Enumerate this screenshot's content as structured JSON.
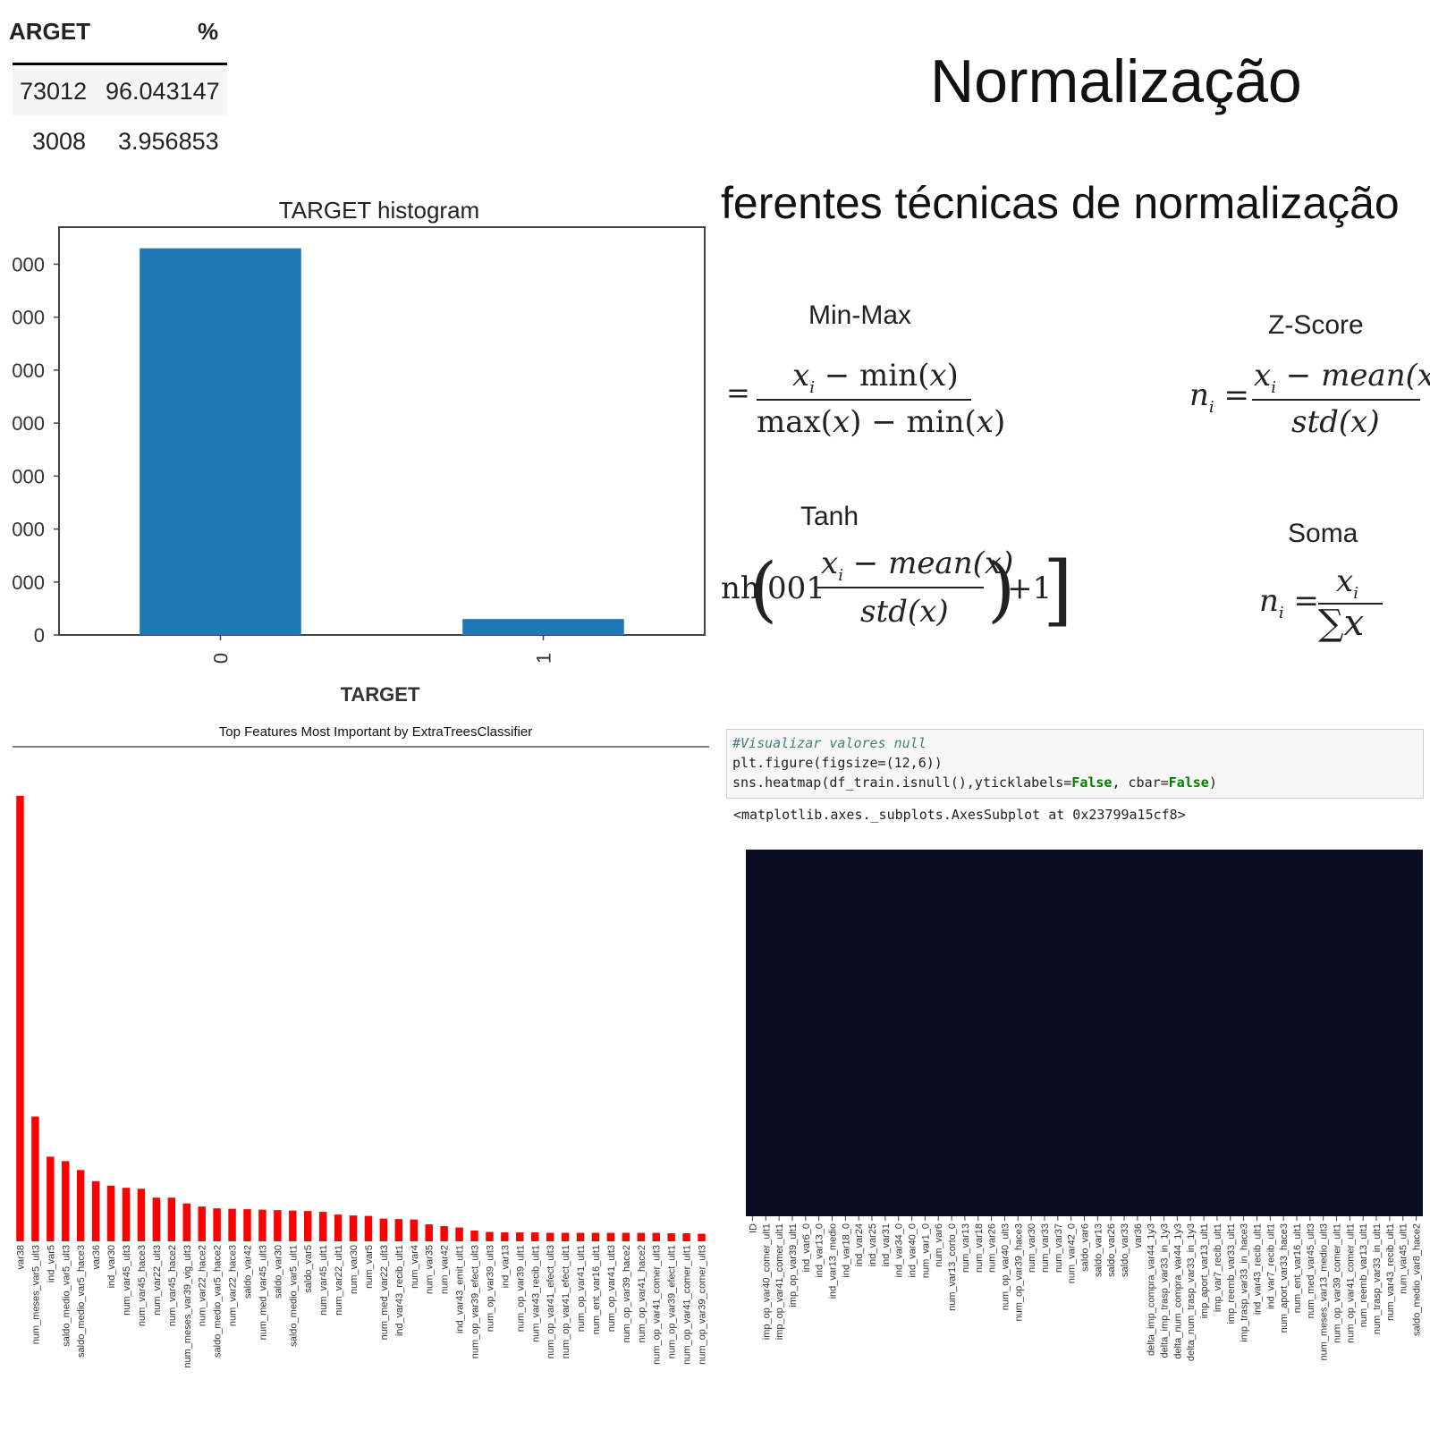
{
  "table": {
    "col1_header": "ARGET",
    "col2_header": "%",
    "rows": [
      {
        "count": "73012",
        "pct": "96.043147"
      },
      {
        "count": "3008",
        "pct": "3.956853"
      }
    ]
  },
  "slide": {
    "title": "Normalização",
    "subtitle": "ferentes técnicas de normalização",
    "formulas": {
      "minmax_label": "Min-Max",
      "zscore_label": "Z-Score",
      "tanh_label": "Tanh",
      "soma_label": "Soma"
    }
  },
  "code_cell": {
    "comment": "#Visualizar valores null",
    "line1": "plt.figure(figsize=(12,6))",
    "line2_prefix": "sns.heatmap(df_train.isnull(),yticklabels=",
    "line2_false1": "False",
    "line2_mid": ", cbar=",
    "line2_false2": "False",
    "line2_suffix": ")",
    "output": "<matplotlib.axes._subplots.AxesSubplot at 0x23799a15cf8>"
  },
  "chart_data": [
    {
      "type": "bar",
      "title": "TARGET histogram",
      "xlabel": "TARGET",
      "ylabel": "",
      "categories": [
        "0",
        "1"
      ],
      "values": [
        73012,
        3008
      ],
      "ylim": [
        0,
        77000
      ],
      "yticks": [
        0,
        10000,
        20000,
        30000,
        40000,
        50000,
        60000,
        70000
      ],
      "ytick_labels": [
        "0",
        "000",
        "000",
        "000",
        "000",
        "000",
        "000",
        "000"
      ],
      "color": "#1f77b4"
    },
    {
      "type": "bar",
      "title": "Top Features Most Important by ExtraTreesClassifier",
      "xlabel": "",
      "ylabel": "",
      "color": "#ff0000",
      "categories": [
        "var38",
        "num_meses_var5_ult3",
        "ind_var5",
        "saldo_medio_var5_ult3",
        "saldo_medio_var5_hace3",
        "var36",
        "ind_var30",
        "num_var45_ult3",
        "num_var45_hace3",
        "num_var22_ult3",
        "num_var45_hace2",
        "num_meses_var39_vig_ult3",
        "num_var22_hace2",
        "saldo_medio_var5_hace2",
        "num_var22_hace3",
        "saldo_var42",
        "num_med_var45_ult3",
        "saldo_var30",
        "saldo_medio_var5_ult1",
        "saldo_var5",
        "num_var45_ult1",
        "num_var22_ult1",
        "num_var30",
        "num_var5",
        "num_med_var22_ult3",
        "ind_var43_recib_ult1",
        "num_var4",
        "num_var35",
        "num_var42",
        "ind_var43_emit_ult1",
        "num_op_var39_efect_ult3",
        "num_op_var39_ult3",
        "ind_var13",
        "num_op_var39_ult1",
        "num_var43_recib_ult1",
        "num_op_var41_efect_ult3",
        "num_op_var41_efect_ult1",
        "num_op_var41_ult1",
        "num_ent_var16_ult1",
        "num_op_var41_ult3",
        "num_op_var39_hace2",
        "num_op_var41_hace2",
        "num_op_var41_comer_ult3",
        "num_op_var39_efect_ult1",
        "num_op_var41_comer_ult1",
        "num_op_var39_comer_ult3"
      ],
      "values": [
        0.1,
        0.028,
        0.019,
        0.018,
        0.016,
        0.0135,
        0.0125,
        0.012,
        0.0118,
        0.0098,
        0.0098,
        0.0085,
        0.0078,
        0.0074,
        0.0073,
        0.0072,
        0.0071,
        0.007,
        0.0069,
        0.0068,
        0.0066,
        0.006,
        0.0058,
        0.0057,
        0.0051,
        0.005,
        0.0049,
        0.0038,
        0.0034,
        0.0031,
        0.0024,
        0.0021,
        0.002,
        0.002,
        0.002,
        0.0019,
        0.0019,
        0.0019,
        0.0019,
        0.0019,
        0.0019,
        0.0019,
        0.0019,
        0.0018,
        0.0018,
        0.0017
      ],
      "ylim": [
        0,
        0.108
      ]
    },
    {
      "type": "heatmap",
      "title": "",
      "color": "#0a0c22",
      "x_tick_labels": [
        "ID",
        "imp_op_var40_comer_ult1",
        "imp_op_var41_comer_ult1",
        "imp_op_var39_ult1",
        "ind_var6_0",
        "ind_var13_0",
        "ind_var13_medio",
        "ind_var18_0",
        "ind_var24",
        "ind_var25",
        "ind_var31",
        "ind_var34_0",
        "ind_var40_0",
        "num_var1_0",
        "num_var6",
        "num_var13_corto_0",
        "num_var13",
        "num_var18",
        "num_var26",
        "num_op_var40_ult3",
        "num_op_var39_hace3",
        "num_var30",
        "num_var33",
        "num_var37",
        "num_var42_0",
        "saldo_var6",
        "saldo_var13",
        "saldo_var26",
        "saldo_var33",
        "var36",
        "delta_imp_compra_var44_1y3",
        "delta_imp_trasp_var33_in_1y3",
        "delta_num_compra_var44_1y3",
        "delta_num_trasp_var33_in_1y3",
        "imp_aport_var13_ult1",
        "imp_var7_recib_ult1",
        "imp_reemb_var33_ult1",
        "imp_trasp_var33_in_hace3",
        "ind_var43_recib_ult1",
        "ind_var7_recib_ult1",
        "num_aport_var33_hace3",
        "num_ent_var16_ult1",
        "num_med_var45_ult3",
        "num_meses_var13_medio_ult3",
        "num_op_var39_comer_ult1",
        "num_op_var41_comer_ult1",
        "num_reemb_var13_ult1",
        "num_trasp_var33_in_ult1",
        "num_var43_recib_ult1",
        "num_var45_ult1",
        "saldo_medio_var8_hace2"
      ]
    }
  ]
}
